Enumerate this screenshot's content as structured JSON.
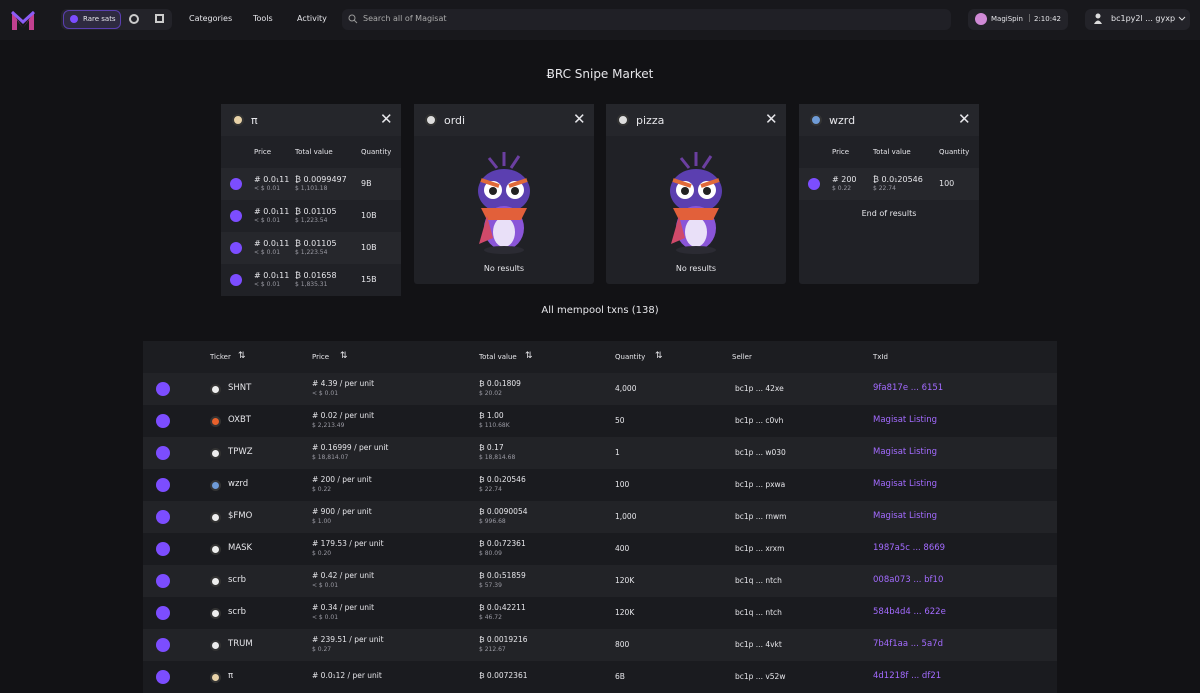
{
  "nav": {
    "rare_sats": "Rare sats",
    "links": [
      "Categories",
      "Tools",
      "Activity"
    ],
    "search_placeholder": "Search all of Magisat",
    "spin": "MagiSpin",
    "timer": "2:10:42",
    "wallet": "bc1py2l ... gyxp"
  },
  "market": {
    "title": "ɃRC Snipe Market",
    "panels": [
      {
        "ticker": "π",
        "columns": [
          "Price",
          "Total value",
          "Quantity"
        ],
        "rows": [
          {
            "price": "# 0.0₁11",
            "price_usd": "< $ 0.01",
            "total": "₿ 0.0099497",
            "total_usd": "$ 1,101.18",
            "quantity": "9B"
          },
          {
            "price": "# 0.0₁11",
            "price_usd": "< $ 0.01",
            "total": "₿ 0.01105",
            "total_usd": "$ 1,223.54",
            "quantity": "10B"
          },
          {
            "price": "# 0.0₁11",
            "price_usd": "< $ 0.01",
            "total": "₿ 0.01105",
            "total_usd": "$ 1,223.54",
            "quantity": "10B"
          },
          {
            "price": "# 0.0₁11",
            "price_usd": "< $ 0.01",
            "total": "₿ 0.01658",
            "total_usd": "$ 1,835.31",
            "quantity": "15B"
          }
        ]
      },
      {
        "ticker": "ordi",
        "empty": "No results"
      },
      {
        "ticker": "pizza",
        "empty": "No results"
      },
      {
        "ticker": "wzrd",
        "columns": [
          "Price",
          "Total value",
          "Quantity"
        ],
        "rows": [
          {
            "price": "# 200",
            "price_usd": "$ 0.22",
            "total": "₿ 0.0₁20546",
            "total_usd": "$ 22.74",
            "quantity": "100"
          }
        ],
        "footer": "End of results"
      }
    ]
  },
  "mempool": {
    "title": "All mempool txns (138)",
    "columns": [
      "Ticker",
      "Price",
      "Total value",
      "Quantity",
      "Seller",
      "TxId"
    ],
    "rows": [
      {
        "ticker": "SHNT",
        "price": "# 4.39 / per unit",
        "price_usd": "< $ 0.01",
        "total": "₿ 0.0₁1809",
        "total_usd": "$ 20.02",
        "quantity": "4,000",
        "seller": "bc1p ... 42xe",
        "txid": "9fa817e ... 6151"
      },
      {
        "ticker": "OXBT",
        "price": "# 0.02 / per unit",
        "price_usd": "$ 2,213.49",
        "total": "₿ 1.00",
        "total_usd": "$ 110.68K",
        "quantity": "50",
        "seller": "bc1p ... c0vh",
        "txid": "Magisat Listing"
      },
      {
        "ticker": "TPWZ",
        "price": "# 0.16999 / per unit",
        "price_usd": "$ 18,814.07",
        "total": "₿ 0.17",
        "total_usd": "$ 18,814.68",
        "quantity": "1",
        "seller": "bc1p ... w030",
        "txid": "Magisat Listing"
      },
      {
        "ticker": "wzrd",
        "price": "# 200 / per unit",
        "price_usd": "$ 0.22",
        "total": "₿ 0.0₁20546",
        "total_usd": "$ 22.74",
        "quantity": "100",
        "seller": "bc1p ... pxwa",
        "txid": "Magisat Listing"
      },
      {
        "ticker": "$FMO",
        "price": "# 900 / per unit",
        "price_usd": "$ 1.00",
        "total": "₿ 0.0090054",
        "total_usd": "$ 996.68",
        "quantity": "1,000",
        "seller": "bc1p ... rnwm",
        "txid": "Magisat Listing"
      },
      {
        "ticker": "MASK",
        "price": "# 179.53 / per unit",
        "price_usd": "$ 0.20",
        "total": "₿ 0.0₁72361",
        "total_usd": "$ 80.09",
        "quantity": "400",
        "seller": "bc1p ... xrxm",
        "txid": "1987a5c ... 8669"
      },
      {
        "ticker": "scrb",
        "price": "# 0.42 / per unit",
        "price_usd": "< $ 0.01",
        "total": "₿ 0.0₁51859",
        "total_usd": "$ 57.39",
        "quantity": "120K",
        "seller": "bc1q ... ntch",
        "txid": "008a073 ... bf10"
      },
      {
        "ticker": "scrb",
        "price": "# 0.34 / per unit",
        "price_usd": "< $ 0.01",
        "total": "₿ 0.0₁42211",
        "total_usd": "$ 46.72",
        "quantity": "120K",
        "seller": "bc1q ... ntch",
        "txid": "584b4d4 ... 622e"
      },
      {
        "ticker": "TRUM",
        "price": "# 239.51 / per unit",
        "price_usd": "$ 0.27",
        "total": "₿ 0.0019216",
        "total_usd": "$ 212.67",
        "quantity": "800",
        "seller": "bc1p ... 4vkt",
        "txid": "7b4f1aa ... 5a7d"
      },
      {
        "ticker": "π",
        "price": "# 0.0₁12 / per unit",
        "total": "₿ 0.0072361",
        "quantity": "6B",
        "seller": "bc1p ... v52w",
        "txid": "4d1218f ... df21"
      }
    ]
  }
}
